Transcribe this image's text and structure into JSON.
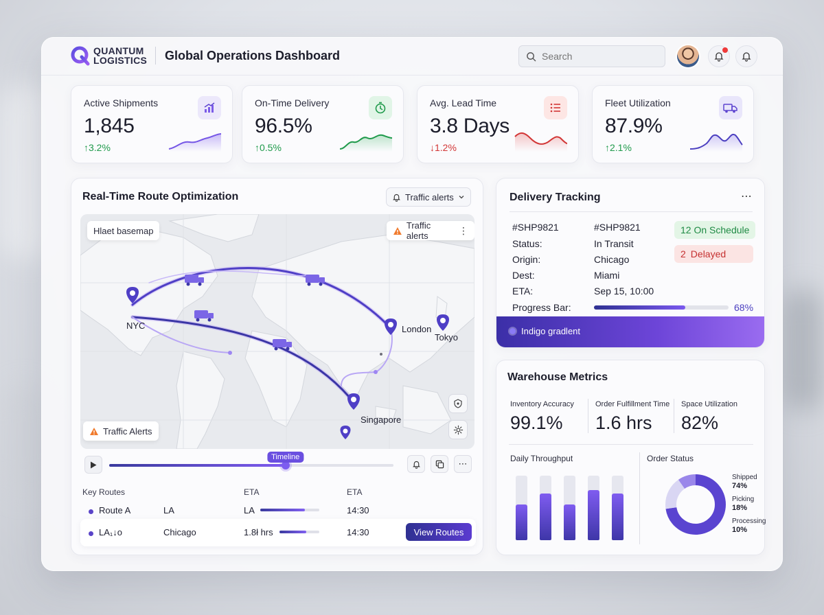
{
  "header": {
    "logo_line1": "QUANTUM",
    "logo_line2": "LOGISTICS",
    "title": "Global Operations Dashboard",
    "search_placeholder": "Search"
  },
  "kpis": [
    {
      "label": "Active Shipments",
      "value": "1,845",
      "delta": "↑3.2%",
      "trend": "up",
      "icon": "chart-up-icon"
    },
    {
      "label": "On-Time Delivery",
      "value": "96.5%",
      "delta": "↑0.5%",
      "trend": "up",
      "icon": "stopwatch-icon"
    },
    {
      "label": "Avg. Lead Time",
      "value": "3.8 Days",
      "delta": "↓1.2%",
      "trend": "down",
      "icon": "list-icon"
    },
    {
      "label": "Fleet Utilization",
      "value": "87.9%",
      "delta": "↑2.1%",
      "trend": "up",
      "icon": "truck-icon"
    }
  ],
  "route_panel": {
    "title": "Real-Time Route Optimization",
    "dropdown_label": "Traffic alerts",
    "basemap_label": "Hlaet basemap",
    "map_alerts_label": "Traffic alerts",
    "map_bottom_alert": "Traffic Alerts",
    "cities": [
      "NYC",
      "London",
      "Tokyo",
      "Singapore"
    ],
    "timeline_label": "Timeline",
    "timeline_progress": 0.62
  },
  "routes": {
    "headers": [
      "Key Routes",
      "ETA",
      "ETA"
    ],
    "rows": [
      {
        "name": "Route A",
        "origin": "LA",
        "eta1": "LA",
        "progress": 0.75,
        "eta2": "14:30"
      },
      {
        "name": "LA₁↓o",
        "origin": "Chicago",
        "eta1": "1.8ł hrs",
        "progress": 0.68,
        "eta2": "14:30"
      }
    ],
    "view_button": "View Routes"
  },
  "tracking": {
    "title": "Delivery Tracking",
    "fields": [
      {
        "label": "#SHP9821",
        "value": "#SHP9821"
      },
      {
        "label": "Status:",
        "value": "In Transit"
      },
      {
        "label": "Origin:",
        "value": "Chicago"
      },
      {
        "label": "Dest:",
        "value": "Miami"
      },
      {
        "label": "ETA:",
        "value": "Sep 15, 10:00"
      },
      {
        "label": "Progress Bar:",
        "value": ""
      }
    ],
    "on_schedule": "12 On Schedule",
    "delayed_count": "2",
    "delayed_label": "Delayed",
    "progress": 0.68,
    "progress_text": "68%",
    "footer": "Indigo gradlent"
  },
  "warehouse": {
    "title": "Warehouse Metrics",
    "metrics": [
      {
        "label": "Inventory Accuracy",
        "value": "99.1%"
      },
      {
        "label": "Order Fulfillment Time",
        "value": "1.6 hrs"
      },
      {
        "label": "Space Utilization",
        "value": "82%"
      }
    ],
    "throughput_title": "Daily Throughput",
    "order_status_title": "Order Status"
  },
  "chart_data": [
    {
      "type": "bar",
      "title": "Daily Throughput",
      "values": [
        0.55,
        0.72,
        0.55,
        0.78,
        0.72
      ]
    },
    {
      "type": "pie",
      "title": "Order Status",
      "categories": [
        "Shipped",
        "Picking",
        "Processing"
      ],
      "values": [
        74,
        18,
        10
      ],
      "labels": [
        "74%",
        "18%",
        "10%"
      ]
    }
  ],
  "colors": {
    "accent": "#6a4fe0",
    "up": "#1f9a4b",
    "down": "#d23636"
  }
}
